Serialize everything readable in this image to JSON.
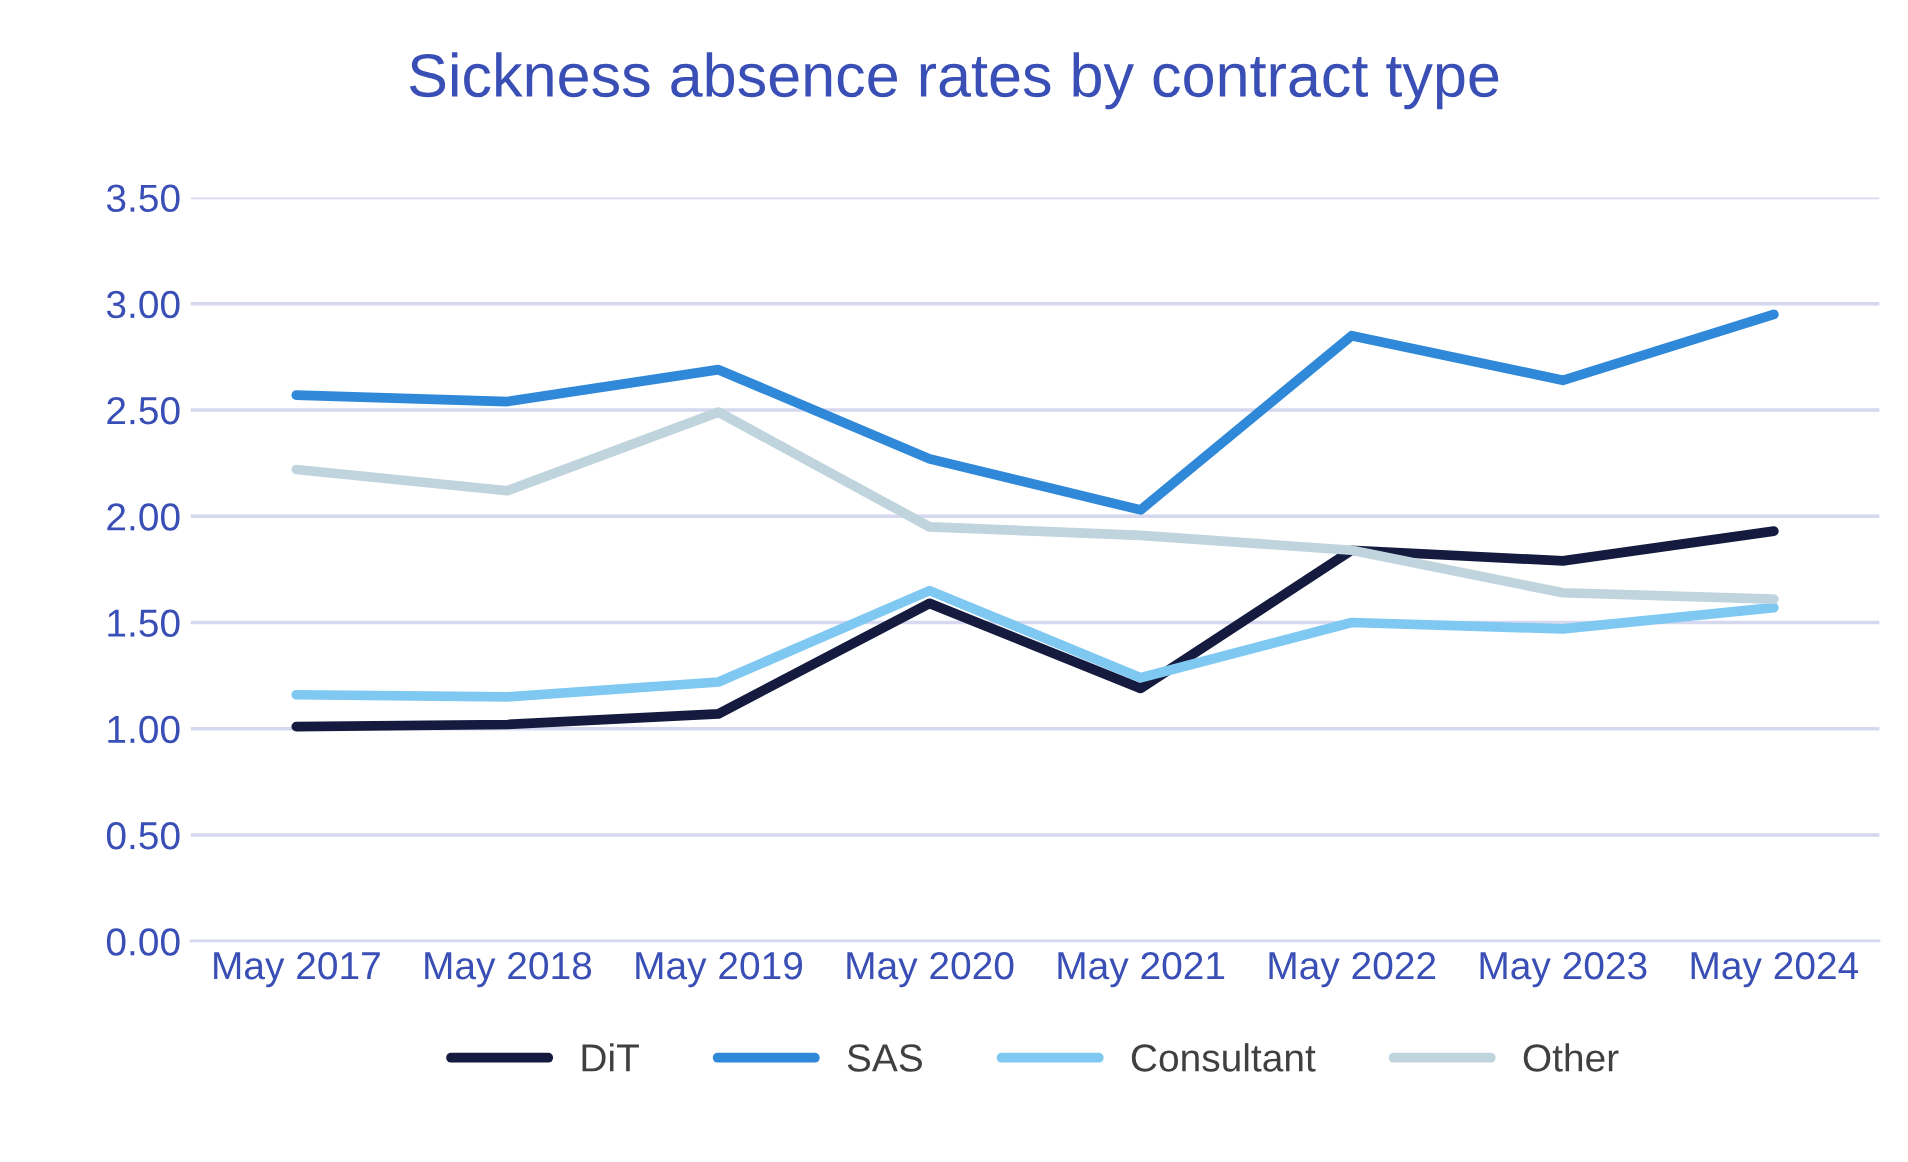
{
  "chart_data": {
    "type": "line",
    "title": "Sickness absence rates by contract type",
    "categories": [
      "May 2017",
      "May 2018",
      "May 2019",
      "May 2020",
      "May 2021",
      "May 2022",
      "May 2023",
      "May 2024"
    ],
    "series": [
      {
        "name": "DiT",
        "color": "#141b3e",
        "values": [
          1.01,
          1.02,
          1.07,
          1.59,
          1.19,
          1.84,
          1.79,
          1.93
        ]
      },
      {
        "name": "SAS",
        "color": "#2f88d8",
        "values": [
          2.57,
          2.54,
          2.69,
          2.27,
          2.03,
          2.85,
          2.64,
          2.95
        ]
      },
      {
        "name": "Consultant",
        "color": "#7ec8f2",
        "values": [
          1.16,
          1.15,
          1.22,
          1.65,
          1.24,
          1.5,
          1.47,
          1.57
        ]
      },
      {
        "name": "Other",
        "color": "#c0d4dd",
        "values": [
          2.22,
          2.12,
          2.49,
          1.95,
          1.91,
          1.84,
          1.64,
          1.61
        ]
      }
    ],
    "ylim": [
      0,
      3.5
    ],
    "yticks": [
      {
        "value": 0,
        "label": "0.00"
      },
      {
        "value": 0.5,
        "label": "0.50"
      },
      {
        "value": 1,
        "label": "1.00"
      },
      {
        "value": 1.5,
        "label": "1.50"
      },
      {
        "value": 2,
        "label": "2.00"
      },
      {
        "value": 2.5,
        "label": "2.50"
      },
      {
        "value": 3,
        "label": "3.00"
      },
      {
        "value": 3.5,
        "label": "3.50"
      }
    ],
    "grid": "y",
    "legend": "bottom",
    "marker": "none",
    "line_style": "solid"
  }
}
